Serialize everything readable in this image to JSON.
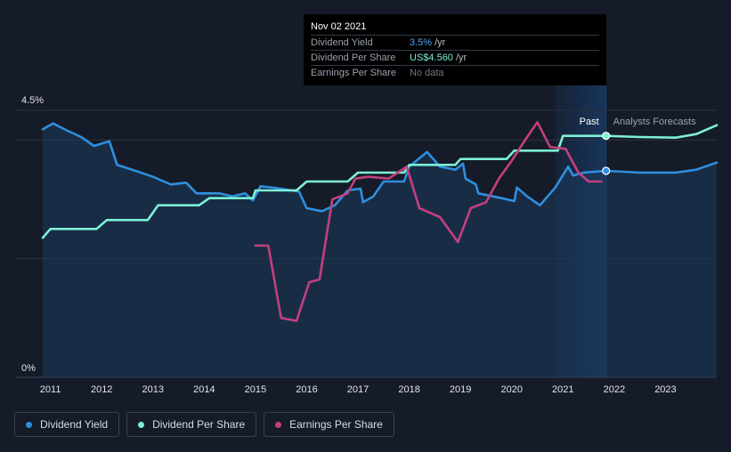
{
  "tooltip": {
    "date": "Nov 02 2021",
    "rows": [
      {
        "label": "Dividend Yield",
        "value": "3.5%",
        "unit": "/yr"
      },
      {
        "label": "Dividend Per Share",
        "value": "US$4.560",
        "unit": "/yr"
      },
      {
        "label": "Earnings Per Share",
        "value": "No data",
        "unit": ""
      }
    ]
  },
  "sections": {
    "past": "Past",
    "forecast": "Analysts Forecasts"
  },
  "legend": [
    {
      "label": "Dividend Yield",
      "color": "#2f8fde"
    },
    {
      "label": "Dividend Per Share",
      "color": "#7df0d6"
    },
    {
      "label": "Earnings Per Share",
      "color": "#c2407f"
    }
  ],
  "chart_data": {
    "type": "line",
    "x_range": [
      2010.85,
      2024.0
    ],
    "y_range": [
      0,
      4.5
    ],
    "y_ticks": [
      {
        "value": 4.5,
        "label": "4.5%"
      },
      {
        "value": 0,
        "label": "0%"
      }
    ],
    "x_ticks": [
      "2011",
      "2012",
      "2013",
      "2014",
      "2015",
      "2016",
      "2017",
      "2018",
      "2019",
      "2020",
      "2021",
      "2022",
      "2023"
    ],
    "x_tick_values": [
      2011,
      2012,
      2013,
      2014,
      2015,
      2016,
      2017,
      2018,
      2019,
      2020,
      2021,
      2022,
      2023
    ],
    "grid_values": [
      4.5,
      4.0,
      2.0
    ],
    "highlight_range": [
      2020.85,
      2021.84
    ],
    "marker_x": 2021.84,
    "series": [
      {
        "name": "Dividend Yield",
        "color": "#2f8fde",
        "fill": true,
        "points": [
          [
            2010.85,
            4.18
          ],
          [
            2011.05,
            4.28
          ],
          [
            2011.3,
            4.17
          ],
          [
            2011.6,
            4.05
          ],
          [
            2011.85,
            3.9
          ],
          [
            2012.15,
            3.98
          ],
          [
            2012.3,
            3.58
          ],
          [
            2012.7,
            3.47
          ],
          [
            2013.0,
            3.38
          ],
          [
            2013.35,
            3.25
          ],
          [
            2013.65,
            3.28
          ],
          [
            2013.85,
            3.1
          ],
          [
            2014.3,
            3.1
          ],
          [
            2014.55,
            3.05
          ],
          [
            2014.8,
            3.1
          ],
          [
            2014.95,
            2.98
          ],
          [
            2015.1,
            3.22
          ],
          [
            2015.4,
            3.19
          ],
          [
            2015.85,
            3.13
          ],
          [
            2016.0,
            2.85
          ],
          [
            2016.3,
            2.8
          ],
          [
            2016.55,
            2.9
          ],
          [
            2016.8,
            3.15
          ],
          [
            2017.05,
            3.18
          ],
          [
            2017.1,
            2.95
          ],
          [
            2017.3,
            3.05
          ],
          [
            2017.5,
            3.3
          ],
          [
            2017.9,
            3.3
          ],
          [
            2018.0,
            3.55
          ],
          [
            2018.35,
            3.8
          ],
          [
            2018.6,
            3.55
          ],
          [
            2018.9,
            3.5
          ],
          [
            2019.05,
            3.6
          ],
          [
            2019.1,
            3.35
          ],
          [
            2019.3,
            3.25
          ],
          [
            2019.35,
            3.1
          ],
          [
            2019.8,
            3.02
          ],
          [
            2020.05,
            2.97
          ],
          [
            2020.1,
            3.2
          ],
          [
            2020.3,
            3.05
          ],
          [
            2020.55,
            2.9
          ],
          [
            2020.85,
            3.2
          ],
          [
            2021.1,
            3.55
          ],
          [
            2021.2,
            3.4
          ],
          [
            2021.4,
            3.45
          ],
          [
            2021.84,
            3.48
          ],
          [
            2022.5,
            3.45
          ],
          [
            2023.2,
            3.45
          ],
          [
            2023.6,
            3.5
          ],
          [
            2024.0,
            3.62
          ]
        ]
      },
      {
        "name": "Dividend Per Share",
        "color": "#7df0d6",
        "fill": false,
        "points": [
          [
            2010.85,
            2.35
          ],
          [
            2011.0,
            2.5
          ],
          [
            2011.9,
            2.5
          ],
          [
            2012.1,
            2.65
          ],
          [
            2012.9,
            2.65
          ],
          [
            2013.1,
            2.9
          ],
          [
            2013.9,
            2.9
          ],
          [
            2014.1,
            3.02
          ],
          [
            2014.95,
            3.02
          ],
          [
            2015.0,
            3.15
          ],
          [
            2015.8,
            3.15
          ],
          [
            2016.0,
            3.3
          ],
          [
            2016.8,
            3.3
          ],
          [
            2017.0,
            3.45
          ],
          [
            2017.9,
            3.45
          ],
          [
            2018.0,
            3.58
          ],
          [
            2018.9,
            3.58
          ],
          [
            2019.0,
            3.68
          ],
          [
            2019.9,
            3.68
          ],
          [
            2020.05,
            3.82
          ],
          [
            2020.9,
            3.82
          ],
          [
            2021.0,
            4.07
          ],
          [
            2021.84,
            4.07
          ],
          [
            2022.5,
            4.05
          ],
          [
            2023.2,
            4.04
          ],
          [
            2023.6,
            4.1
          ],
          [
            2024.0,
            4.25
          ]
        ]
      },
      {
        "name": "Earnings Per Share",
        "color": "#c2407f",
        "fill": false,
        "points": [
          [
            2015.0,
            2.22
          ],
          [
            2015.25,
            2.22
          ],
          [
            2015.5,
            1.0
          ],
          [
            2015.8,
            0.95
          ],
          [
            2016.05,
            1.6
          ],
          [
            2016.25,
            1.65
          ],
          [
            2016.5,
            3.0
          ],
          [
            2016.8,
            3.1
          ],
          [
            2016.95,
            3.35
          ],
          [
            2017.2,
            3.38
          ],
          [
            2017.6,
            3.35
          ],
          [
            2017.95,
            3.55
          ],
          [
            2018.2,
            2.85
          ],
          [
            2018.6,
            2.7
          ],
          [
            2018.95,
            2.28
          ],
          [
            2019.2,
            2.85
          ],
          [
            2019.5,
            2.95
          ],
          [
            2019.75,
            3.35
          ],
          [
            2020.0,
            3.65
          ],
          [
            2020.3,
            4.05
          ],
          [
            2020.5,
            4.3
          ],
          [
            2020.75,
            3.88
          ],
          [
            2021.05,
            3.85
          ],
          [
            2021.3,
            3.45
          ],
          [
            2021.5,
            3.3
          ],
          [
            2021.75,
            3.3
          ]
        ]
      }
    ],
    "markers": [
      {
        "series": "Dividend Yield",
        "x": 2021.84,
        "y": 3.48
      },
      {
        "series": "Dividend Per Share",
        "x": 2021.84,
        "y": 4.07
      }
    ]
  }
}
